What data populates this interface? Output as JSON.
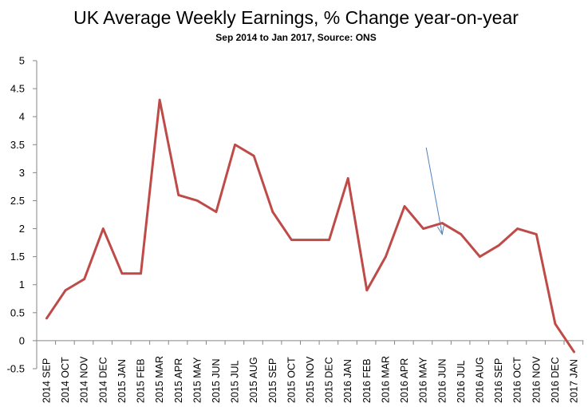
{
  "chart_data": {
    "type": "line",
    "title": "UK Average Weekly Earnings, % Change year-on-year",
    "subtitle": "Sep 2014 to Jan 2017, Source: ONS",
    "xlabel": "",
    "ylabel": "",
    "ylim": [
      -0.5,
      5
    ],
    "yticks": [
      "5",
      "4.5",
      "4",
      "3.5",
      "3",
      "2.5",
      "2",
      "1.5",
      "1",
      "0.5",
      "0",
      "-0.5"
    ],
    "grid": false,
    "legend": "none",
    "categories": [
      "2014 SEP",
      "2014 OCT",
      "2014 NOV",
      "2014 DEC",
      "2015 JAN",
      "2015 FEB",
      "2015 MAR",
      "2015 APR",
      "2015 MAY",
      "2015 JUN",
      "2015 JUL",
      "2015 AUG",
      "2015 SEP",
      "2015 OCT",
      "2015 NOV",
      "2015 DEC",
      "2016 JAN",
      "2016 FEB",
      "2016 MAR",
      "2016 APR",
      "2016 MAY",
      "2016 JUN",
      "2016 JUL",
      "2016 AUG",
      "2016 SEP",
      "2016 OCT",
      "2016 NOV",
      "2016 DEC",
      "2017 JAN"
    ],
    "series": [
      {
        "name": "Average Weekly Earnings % change y/y",
        "color": "#BE4B48",
        "values": [
          0.4,
          0.9,
          1.1,
          2.0,
          1.2,
          1.2,
          4.3,
          2.6,
          2.5,
          2.3,
          3.5,
          3.3,
          2.3,
          1.8,
          1.8,
          1.8,
          2.9,
          0.9,
          1.5,
          2.4,
          2.0,
          2.1,
          1.9,
          1.5,
          1.7,
          2.0,
          1.9,
          0.3,
          -0.2
        ]
      }
    ],
    "annotations": [
      {
        "type": "arrow",
        "color": "#4F81BD",
        "from": {
          "x_index": 20.15,
          "y": 3.45
        },
        "to": {
          "x_index": 21.0,
          "y": 1.9
        }
      }
    ]
  }
}
